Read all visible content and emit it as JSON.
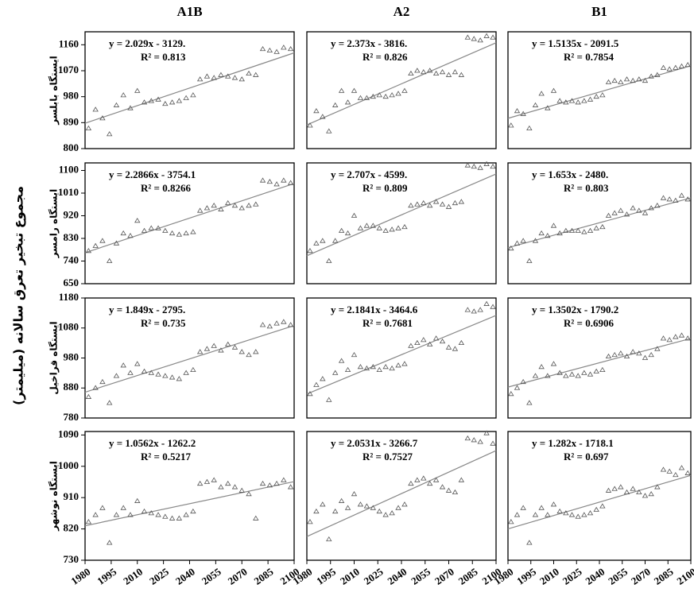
{
  "column_titles": [
    "A1B",
    "A2",
    "B1"
  ],
  "row_labels": [
    "ایستگاه بابلسر",
    "ایستگاه رامسر",
    "ایستگاه قراخیل",
    "ایستگاه نوشهر"
  ],
  "y_axis_label": "مجموع تبخیر تعرق سالانه (میلیمتر)",
  "chart_data": [
    {
      "type": "scatter",
      "x": [
        1982,
        1986,
        1990,
        1994,
        1998,
        2002,
        2006,
        2010,
        2014,
        2018,
        2022,
        2026,
        2030,
        2034,
        2038,
        2042,
        2046,
        2050,
        2054,
        2058,
        2062,
        2066,
        2070,
        2074,
        2078,
        2082,
        2086,
        2090,
        2094,
        2098
      ],
      "values": [
        870,
        935,
        905,
        850,
        950,
        985,
        940,
        1000,
        960,
        965,
        970,
        955,
        960,
        965,
        975,
        985,
        1040,
        1050,
        1045,
        1055,
        1050,
        1045,
        1040,
        1060,
        1055,
        1145,
        1140,
        1135,
        1150,
        1145
      ],
      "xlim": [
        1980,
        2100
      ],
      "ylim": [
        800,
        1205
      ],
      "yticks": [
        800,
        890,
        980,
        1070,
        1160
      ],
      "equation": "y = 2.029x - 3129.",
      "r_squared": "R² = 0.813",
      "trend": {
        "x": [
          1980,
          2100
        ],
        "y": [
          888,
          1132
        ]
      },
      "color": "#555555"
    },
    {
      "type": "scatter",
      "x": [
        1982,
        1986,
        1990,
        1994,
        1998,
        2002,
        2006,
        2010,
        2014,
        2018,
        2022,
        2026,
        2030,
        2034,
        2038,
        2042,
        2046,
        2050,
        2054,
        2058,
        2062,
        2066,
        2070,
        2074,
        2078,
        2082,
        2086,
        2090,
        2094,
        2098
      ],
      "values": [
        880,
        930,
        910,
        860,
        950,
        1000,
        960,
        1000,
        975,
        975,
        980,
        985,
        980,
        985,
        990,
        1000,
        1060,
        1070,
        1065,
        1070,
        1060,
        1065,
        1055,
        1065,
        1055,
        1185,
        1180,
        1175,
        1190,
        1185
      ],
      "xlim": [
        1980,
        2100
      ],
      "ylim": [
        800,
        1205
      ],
      "equation": "y = 2.373x - 3816.",
      "r_squared": "R² = 0.826",
      "trend": {
        "x": [
          1980,
          2100
        ],
        "y": [
          882,
          1167
        ]
      },
      "color": "#555555"
    },
    {
      "type": "scatter",
      "x": [
        1982,
        1986,
        1990,
        1994,
        1998,
        2002,
        2006,
        2010,
        2014,
        2018,
        2022,
        2026,
        2030,
        2034,
        2038,
        2042,
        2046,
        2050,
        2054,
        2058,
        2062,
        2066,
        2070,
        2074,
        2078,
        2082,
        2086,
        2090,
        2094,
        2098
      ],
      "values": [
        880,
        930,
        920,
        870,
        950,
        990,
        940,
        1000,
        965,
        960,
        965,
        960,
        965,
        970,
        980,
        985,
        1030,
        1035,
        1030,
        1040,
        1035,
        1040,
        1035,
        1050,
        1055,
        1080,
        1075,
        1080,
        1085,
        1090
      ],
      "xlim": [
        1980,
        2100
      ],
      "ylim": [
        800,
        1205
      ],
      "equation": "y = 1.5135x - 2091.5",
      "r_squared": "R² = 0.7854",
      "trend": {
        "x": [
          1980,
          2100
        ],
        "y": [
          905,
          1087
        ]
      },
      "color": "#555555"
    },
    {
      "type": "scatter",
      "x": [
        1982,
        1986,
        1990,
        1994,
        1998,
        2002,
        2006,
        2010,
        2014,
        2018,
        2022,
        2026,
        2030,
        2034,
        2038,
        2042,
        2046,
        2050,
        2054,
        2058,
        2062,
        2066,
        2070,
        2074,
        2078,
        2082,
        2086,
        2090,
        2094,
        2098
      ],
      "values": [
        780,
        800,
        820,
        740,
        810,
        850,
        840,
        900,
        860,
        870,
        870,
        860,
        850,
        845,
        850,
        855,
        940,
        950,
        960,
        945,
        970,
        960,
        950,
        960,
        965,
        1060,
        1055,
        1045,
        1060,
        1050
      ],
      "xlim": [
        1980,
        2100
      ],
      "ylim": [
        650,
        1130
      ],
      "yticks": [
        650,
        740,
        830,
        920,
        1010,
        1100
      ],
      "equation": "y = 2.2866x - 3754.1",
      "r_squared": "R² = 0.8266",
      "trend": {
        "x": [
          1980,
          2100
        ],
        "y": [
          773,
          1048
        ]
      },
      "color": "#555555"
    },
    {
      "type": "scatter",
      "x": [
        1982,
        1986,
        1990,
        1994,
        1998,
        2002,
        2006,
        2010,
        2014,
        2018,
        2022,
        2026,
        2030,
        2034,
        2038,
        2042,
        2046,
        2050,
        2054,
        2058,
        2062,
        2066,
        2070,
        2074,
        2078,
        2082,
        2086,
        2090,
        2094,
        2098
      ],
      "values": [
        780,
        810,
        820,
        740,
        820,
        860,
        850,
        920,
        870,
        880,
        880,
        870,
        860,
        865,
        870,
        875,
        960,
        965,
        970,
        960,
        975,
        965,
        955,
        970,
        975,
        1120,
        1115,
        1110,
        1125,
        1115
      ],
      "xlim": [
        1980,
        2100
      ],
      "ylim": [
        650,
        1130
      ],
      "equation": "y = 2.707x - 4599.",
      "r_squared": "R² = 0.809",
      "trend": {
        "x": [
          1980,
          2100
        ],
        "y": [
          761,
          1086
        ]
      },
      "color": "#555555"
    },
    {
      "type": "scatter",
      "x": [
        1982,
        1986,
        1990,
        1994,
        1998,
        2002,
        2006,
        2010,
        2014,
        2018,
        2022,
        2026,
        2030,
        2034,
        2038,
        2042,
        2046,
        2050,
        2054,
        2058,
        2062,
        2066,
        2070,
        2074,
        2078,
        2082,
        2086,
        2090,
        2094,
        2098
      ],
      "values": [
        790,
        810,
        820,
        740,
        820,
        850,
        840,
        880,
        850,
        860,
        860,
        860,
        855,
        860,
        870,
        875,
        920,
        930,
        940,
        925,
        950,
        940,
        930,
        950,
        960,
        990,
        985,
        980,
        1000,
        985
      ],
      "xlim": [
        1980,
        2100
      ],
      "ylim": [
        650,
        1130
      ],
      "equation": "y = 1.653x - 2480.",
      "r_squared": "R² = 0.803",
      "trend": {
        "x": [
          1980,
          2100
        ],
        "y": [
          793,
          991
        ]
      },
      "color": "#555555"
    },
    {
      "type": "scatter",
      "x": [
        1982,
        1986,
        1990,
        1994,
        1998,
        2002,
        2006,
        2010,
        2014,
        2018,
        2022,
        2026,
        2030,
        2034,
        2038,
        2042,
        2046,
        2050,
        2054,
        2058,
        2062,
        2066,
        2070,
        2074,
        2078,
        2082,
        2086,
        2090,
        2094,
        2098
      ],
      "values": [
        850,
        880,
        900,
        830,
        920,
        955,
        930,
        960,
        935,
        930,
        925,
        920,
        915,
        910,
        930,
        940,
        1000,
        1010,
        1020,
        1005,
        1025,
        1015,
        1000,
        990,
        1000,
        1090,
        1085,
        1095,
        1100,
        1090
      ],
      "xlim": [
        1980,
        2100
      ],
      "ylim": [
        780,
        1180
      ],
      "yticks": [
        780,
        880,
        980,
        1080,
        1180
      ],
      "equation": "y = 1.849x - 2795.",
      "r_squared": "R² = 0.735",
      "trend": {
        "x": [
          1980,
          2100
        ],
        "y": [
          866,
          1088
        ]
      },
      "color": "#555555"
    },
    {
      "type": "scatter",
      "x": [
        1982,
        1986,
        1990,
        1994,
        1998,
        2002,
        2006,
        2010,
        2014,
        2018,
        2022,
        2026,
        2030,
        2034,
        2038,
        2042,
        2046,
        2050,
        2054,
        2058,
        2062,
        2066,
        2070,
        2074,
        2078,
        2082,
        2086,
        2090,
        2094,
        2098
      ],
      "values": [
        860,
        890,
        910,
        840,
        930,
        970,
        940,
        990,
        950,
        945,
        950,
        940,
        950,
        945,
        955,
        960,
        1020,
        1030,
        1040,
        1025,
        1045,
        1035,
        1015,
        1010,
        1030,
        1140,
        1135,
        1140,
        1160,
        1150
      ],
      "xlim": [
        1980,
        2100
      ],
      "ylim": [
        780,
        1180
      ],
      "equation": "y = 2.1841x - 3464.6",
      "r_squared": "R² = 0.7681",
      "trend": {
        "x": [
          1980,
          2100
        ],
        "y": [
          860,
          1122
        ]
      },
      "color": "#555555"
    },
    {
      "type": "scatter",
      "x": [
        1982,
        1986,
        1990,
        1994,
        1998,
        2002,
        2006,
        2010,
        2014,
        2018,
        2022,
        2026,
        2030,
        2034,
        2038,
        2042,
        2046,
        2050,
        2054,
        2058,
        2062,
        2066,
        2070,
        2074,
        2078,
        2082,
        2086,
        2090,
        2094,
        2098
      ],
      "values": [
        860,
        880,
        900,
        830,
        920,
        950,
        920,
        960,
        930,
        920,
        925,
        920,
        930,
        925,
        935,
        940,
        985,
        990,
        995,
        985,
        1000,
        995,
        980,
        990,
        1010,
        1045,
        1040,
        1050,
        1055,
        1045
      ],
      "xlim": [
        1980,
        2100
      ],
      "ylim": [
        780,
        1180
      ],
      "equation": "y = 1.3502x - 1790.2",
      "r_squared": "R² = 0.6906",
      "trend": {
        "x": [
          1980,
          2100
        ],
        "y": [
          883,
          1045
        ]
      },
      "color": "#555555"
    },
    {
      "type": "scatter",
      "x": [
        1982,
        1986,
        1990,
        1994,
        1998,
        2002,
        2006,
        2010,
        2014,
        2018,
        2022,
        2026,
        2030,
        2034,
        2038,
        2042,
        2046,
        2050,
        2054,
        2058,
        2062,
        2066,
        2070,
        2074,
        2078,
        2082,
        2086,
        2090,
        2094,
        2098
      ],
      "values": [
        840,
        860,
        880,
        780,
        860,
        880,
        860,
        900,
        870,
        865,
        860,
        855,
        850,
        850,
        860,
        870,
        950,
        955,
        960,
        940,
        950,
        940,
        930,
        920,
        850,
        950,
        945,
        950,
        960,
        940
      ],
      "xlim": [
        1980,
        2100
      ],
      "ylim": [
        730,
        1100
      ],
      "yticks": [
        730,
        820,
        910,
        1000,
        1090
      ],
      "xticks": [
        1980,
        1995,
        2010,
        2025,
        2040,
        2055,
        2070,
        2085,
        2100
      ],
      "equation": "y = 1.0562x - 1262.2",
      "r_squared": "R² = 0.5217",
      "trend": {
        "x": [
          1980,
          2100
        ],
        "y": [
          829,
          956
        ]
      },
      "color": "#555555"
    },
    {
      "type": "scatter",
      "x": [
        1982,
        1986,
        1990,
        1994,
        1998,
        2002,
        2006,
        2010,
        2014,
        2018,
        2022,
        2026,
        2030,
        2034,
        2038,
        2042,
        2046,
        2050,
        2054,
        2058,
        2062,
        2066,
        2070,
        2074,
        2078,
        2082,
        2086,
        2090,
        2094,
        2098
      ],
      "values": [
        840,
        870,
        890,
        790,
        870,
        900,
        880,
        920,
        890,
        885,
        880,
        870,
        860,
        865,
        880,
        890,
        950,
        960,
        965,
        950,
        960,
        940,
        930,
        925,
        960,
        1080,
        1075,
        1070,
        1095,
        1065
      ],
      "xlim": [
        1980,
        2100
      ],
      "ylim": [
        730,
        1100
      ],
      "xticks": [
        1980,
        1995,
        2010,
        2025,
        2040,
        2055,
        2070,
        2085,
        2100
      ],
      "equation": "y = 2.0531x - 3266.7",
      "r_squared": "R² = 0.7527",
      "trend": {
        "x": [
          1980,
          2100
        ],
        "y": [
          798,
          1045
        ]
      },
      "color": "#555555"
    },
    {
      "type": "scatter",
      "x": [
        1982,
        1986,
        1990,
        1994,
        1998,
        2002,
        2006,
        2010,
        2014,
        2018,
        2022,
        2026,
        2030,
        2034,
        2038,
        2042,
        2046,
        2050,
        2054,
        2058,
        2062,
        2066,
        2070,
        2074,
        2078,
        2082,
        2086,
        2090,
        2094,
        2098
      ],
      "values": [
        840,
        860,
        880,
        780,
        860,
        880,
        860,
        890,
        870,
        865,
        860,
        855,
        860,
        865,
        875,
        885,
        930,
        935,
        940,
        925,
        935,
        925,
        915,
        920,
        940,
        990,
        985,
        975,
        995,
        980
      ],
      "xlim": [
        1980,
        2100
      ],
      "ylim": [
        730,
        1100
      ],
      "xticks": [
        1980,
        1995,
        2010,
        2025,
        2040,
        2055,
        2070,
        2085,
        2100
      ],
      "equation": "y = 1.282x - 1718.1",
      "r_squared": "R² = 0.697",
      "trend": {
        "x": [
          1980,
          2100
        ],
        "y": [
          820,
          974
        ]
      },
      "color": "#555555"
    }
  ]
}
